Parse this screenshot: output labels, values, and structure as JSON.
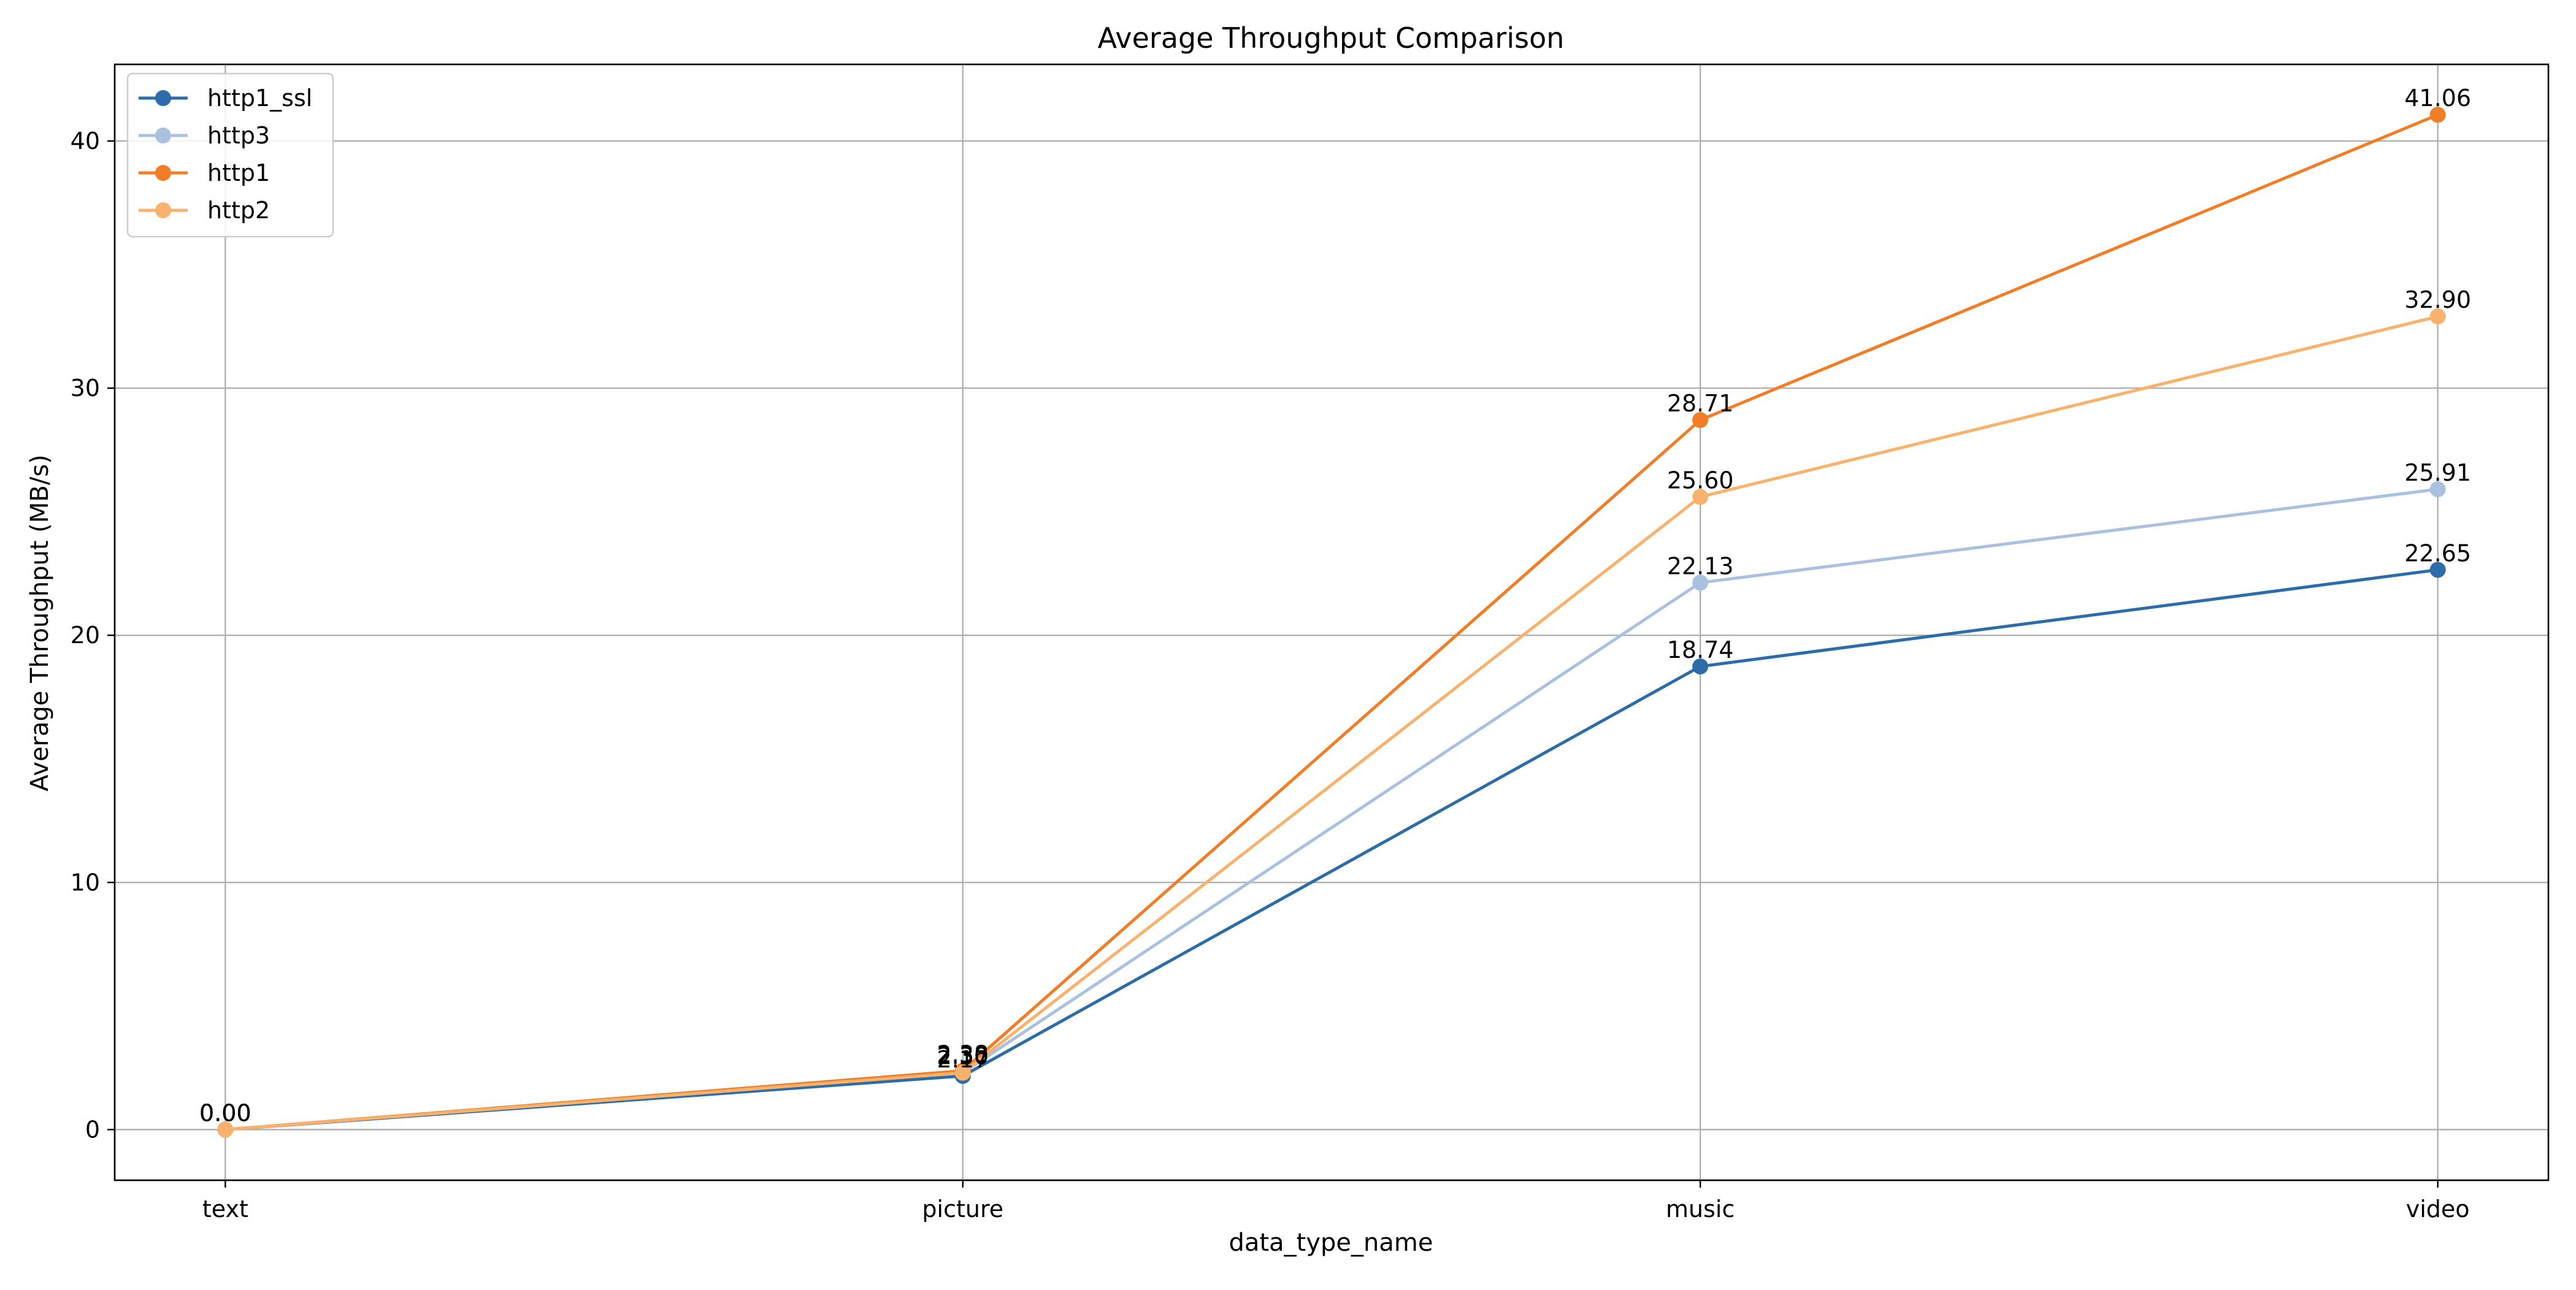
{
  "chart_data": {
    "type": "line",
    "title": "Average Throughput Comparison",
    "xlabel": "data_type_name",
    "ylabel": "Average Throughput (MB/s)",
    "categories": [
      "text",
      "picture",
      "music",
      "video"
    ],
    "ylim": [
      -2.05,
      43.1
    ],
    "yticks": [
      0,
      10,
      20,
      30,
      40
    ],
    "grid": true,
    "legend_position": "top-left",
    "series": [
      {
        "name": "http1_ssl",
        "color": "#2c6ca8",
        "values": [
          0.0,
          2.17,
          18.74,
          22.65
        ],
        "labels": [
          "0.00",
          "2.17",
          "18.74",
          "22.65"
        ]
      },
      {
        "name": "http3",
        "color": "#a9c1de",
        "values": [
          0.0,
          2.3,
          22.13,
          25.91
        ],
        "labels": [
          "0.00",
          "2.30",
          "22.13",
          "25.91"
        ]
      },
      {
        "name": "http1",
        "color": "#f27d27",
        "values": [
          0.0,
          2.38,
          28.71,
          41.06
        ],
        "labels": [
          "0.00",
          "2.38",
          "28.71",
          "41.06"
        ]
      },
      {
        "name": "http2",
        "color": "#f9b26e",
        "values": [
          0.0,
          2.3,
          25.6,
          32.9
        ],
        "labels": [
          "0.00",
          "2.30",
          "25.60",
          "32.90"
        ]
      }
    ]
  }
}
